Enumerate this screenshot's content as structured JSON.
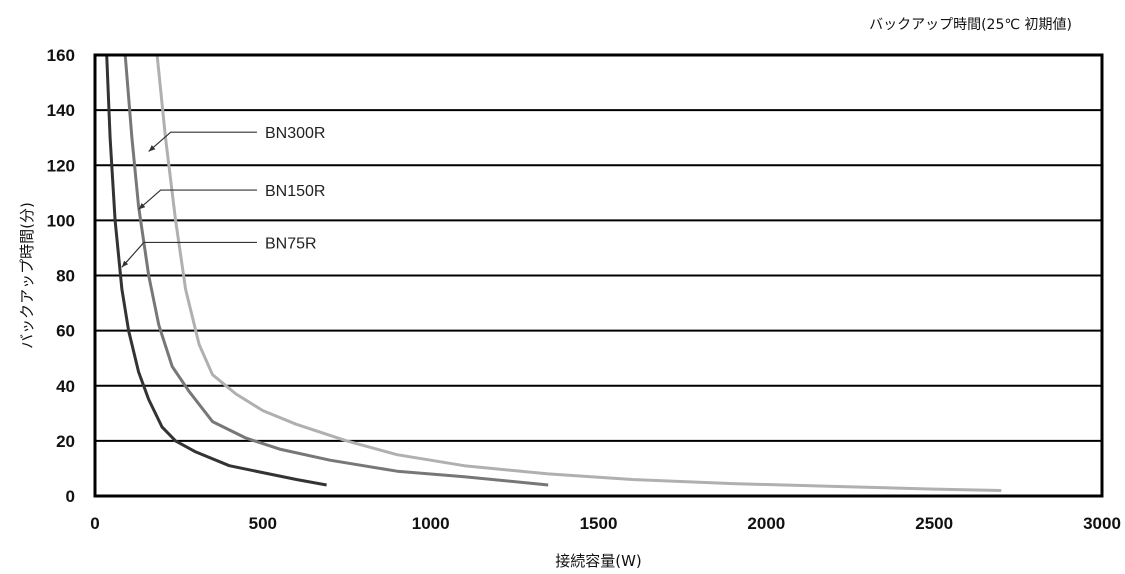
{
  "chart_data": {
    "type": "line",
    "title": "バックアップ時間(25℃ 初期値)",
    "xlabel": "接続容量(W)",
    "ylabel": "バックアップ時間(分)",
    "xlim": [
      0,
      3000
    ],
    "ylim": [
      0,
      160
    ],
    "xticks": [
      0,
      500,
      1000,
      1500,
      2000,
      2500,
      3000
    ],
    "yticks": [
      0,
      20,
      40,
      60,
      80,
      100,
      120,
      140,
      160
    ],
    "grid": "horizontal",
    "series": [
      {
        "name": "BN75R",
        "color": "#333333",
        "points": [
          [
            35,
            160
          ],
          [
            45,
            130
          ],
          [
            60,
            100
          ],
          [
            80,
            75
          ],
          [
            100,
            60
          ],
          [
            130,
            45
          ],
          [
            160,
            35
          ],
          [
            200,
            25
          ],
          [
            240,
            20
          ],
          [
            300,
            16
          ],
          [
            400,
            11
          ],
          [
            500,
            8.5
          ],
          [
            600,
            6
          ],
          [
            690,
            4
          ]
        ]
      },
      {
        "name": "BN150R",
        "color": "#777777",
        "points": [
          [
            90,
            160
          ],
          [
            110,
            130
          ],
          [
            130,
            105
          ],
          [
            160,
            80
          ],
          [
            190,
            62
          ],
          [
            230,
            47
          ],
          [
            280,
            38
          ],
          [
            350,
            27
          ],
          [
            450,
            21
          ],
          [
            550,
            17
          ],
          [
            700,
            13
          ],
          [
            900,
            9
          ],
          [
            1100,
            7
          ],
          [
            1350,
            4
          ]
        ]
      },
      {
        "name": "BN300R",
        "color": "#b0b0b0",
        "points": [
          [
            185,
            160
          ],
          [
            210,
            130
          ],
          [
            240,
            100
          ],
          [
            270,
            75
          ],
          [
            310,
            55
          ],
          [
            350,
            44
          ],
          [
            420,
            37
          ],
          [
            500,
            31
          ],
          [
            600,
            26
          ],
          [
            750,
            20
          ],
          [
            900,
            15
          ],
          [
            1100,
            11
          ],
          [
            1350,
            8
          ],
          [
            1600,
            6
          ],
          [
            1900,
            4.5
          ],
          [
            2200,
            3.5
          ],
          [
            2500,
            2.5
          ],
          [
            2700,
            2
          ]
        ]
      }
    ],
    "annotations": [
      {
        "label": "BN300R",
        "target": [
          160,
          125
        ],
        "text_y": 132
      },
      {
        "label": "BN150R",
        "target": [
          130,
          104
        ],
        "text_y": 111
      },
      {
        "label": "BN75R",
        "target": [
          80,
          83
        ],
        "text_y": 92
      }
    ]
  }
}
